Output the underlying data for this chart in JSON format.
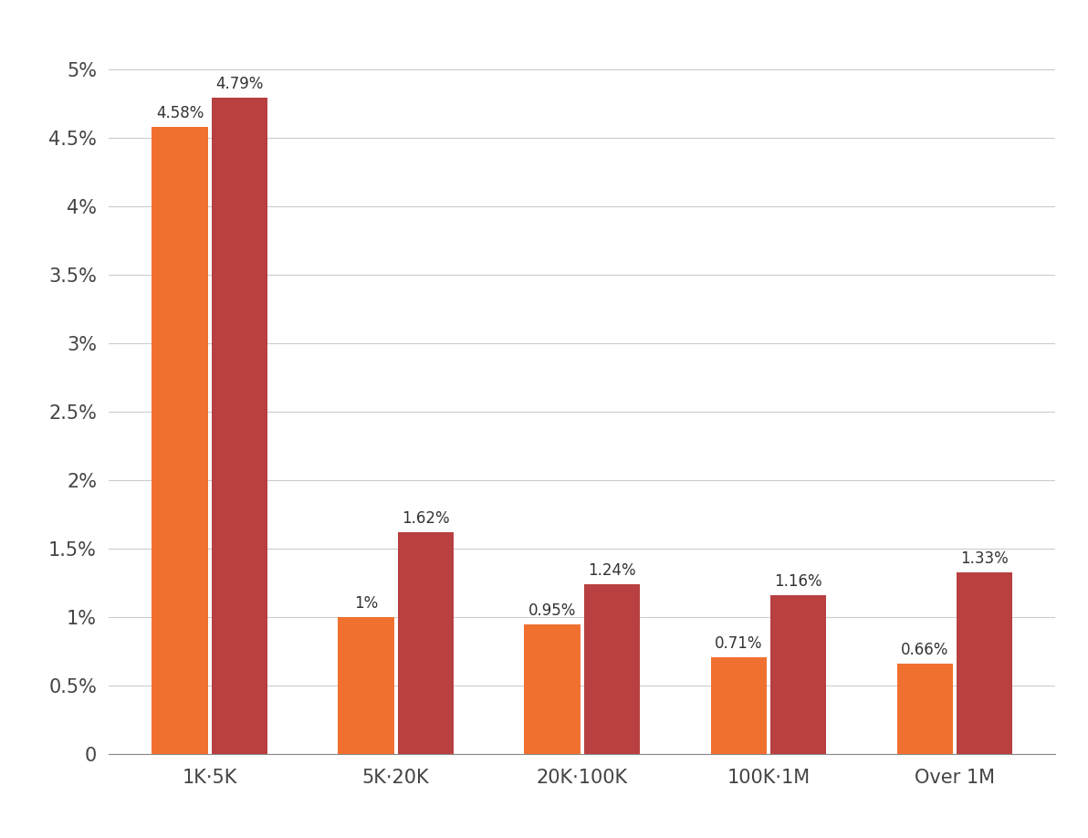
{
  "categories": [
    "1K·5K",
    "5K·20K",
    "20K·100K",
    "100K·1M",
    "Over 1M"
  ],
  "series1_values": [
    4.58,
    1.0,
    0.95,
    0.71,
    0.66
  ],
  "series2_values": [
    4.79,
    1.62,
    1.24,
    1.16,
    1.33
  ],
  "series1_labels": [
    "4.58%",
    "1%",
    "0.95%",
    "0.71%",
    "0.66%"
  ],
  "series2_labels": [
    "4.79%",
    "1.62%",
    "1.24%",
    "1.16%",
    "1.33%"
  ],
  "series1_color": "#F07030",
  "series2_color": "#B84040",
  "background_color": "#FFFFFF",
  "ylim": [
    0,
    5.2
  ],
  "yticks": [
    0,
    0.5,
    1.0,
    1.5,
    2.0,
    2.5,
    3.0,
    3.5,
    4.0,
    4.5,
    5.0
  ],
  "ytick_labels": [
    "0",
    "0.5%",
    "1%",
    "1.5%",
    "2%",
    "2.5%",
    "3%",
    "3.5%",
    "4%",
    "4.5%",
    "5%"
  ],
  "bar_width": 0.3,
  "bar_gap": 0.02,
  "label_fontsize": 12,
  "tick_fontsize": 15
}
